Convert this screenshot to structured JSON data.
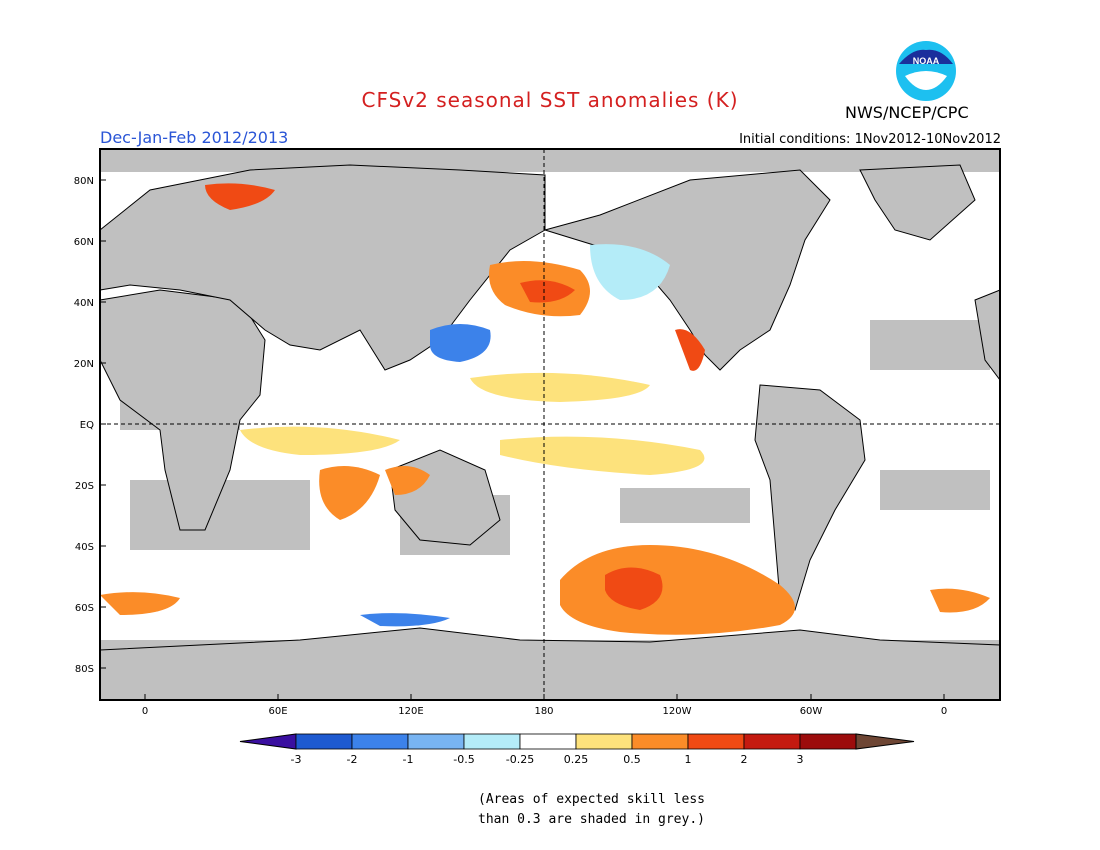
{
  "header": {
    "title": "CFSv2 seasonal SST anomalies (K)",
    "agency": "NWS/NCEP/CPC",
    "period": "Dec-Jan-Feb 2012/2013",
    "initial_conditions": "Initial conditions: 1Nov2012-10Nov2012"
  },
  "logo": {
    "text": "NOAA",
    "icon": "noaa-logo"
  },
  "map": {
    "lat_labels": [
      "80N",
      "60N",
      "40N",
      "20N",
      "EQ",
      "20S",
      "40S",
      "60S",
      "80S"
    ],
    "lon_labels": [
      "0",
      "60E",
      "120E",
      "180",
      "120W",
      "60W",
      "0"
    ],
    "land_color": "#c0c0c0",
    "ocean_color": "#ffffff"
  },
  "colorbar": {
    "tick_labels": [
      "-3",
      "-2",
      "-1",
      "-0.5",
      "-0.25",
      "0.25",
      "0.5",
      "1",
      "2",
      "3"
    ],
    "colors": [
      "#3a0fa0",
      "#1e5ad0",
      "#3c82ea",
      "#78b4f2",
      "#b4ecf8",
      "#ffffff",
      "#fde27c",
      "#fb8c28",
      "#f04a14",
      "#c41a10",
      "#9c0c0c",
      "#6e4634"
    ]
  },
  "footnote": {
    "line1": "(Areas of expected skill less",
    "line2": "than 0.3 are shaded in grey.)"
  }
}
